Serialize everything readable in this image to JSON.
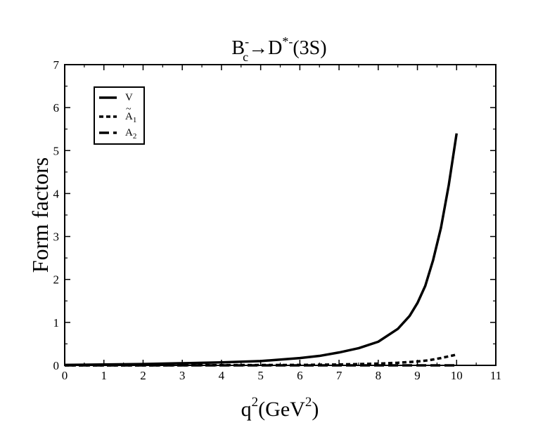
{
  "chart_data": {
    "type": "line",
    "title": {
      "base1": "B",
      "sup1": "-",
      "sub1": "c",
      "arrow": "→",
      "base2": "D",
      "sup2": "*-",
      "tail": "(3S)"
    },
    "xlabel": {
      "base": "q",
      "sup": "2",
      "mid": "(GeV",
      "sup2": "2",
      "end": ")"
    },
    "ylabel": "Form factors",
    "xlim": [
      0,
      11
    ],
    "ylim": [
      0,
      7
    ],
    "x_ticks": [
      "0",
      "1",
      "2",
      "3",
      "4",
      "5",
      "6",
      "7",
      "8",
      "9",
      "10",
      "11"
    ],
    "y_ticks": [
      "0",
      "1",
      "2",
      "3",
      "4",
      "5",
      "6",
      "7"
    ],
    "grid": false,
    "legend_position": "top-left",
    "series": [
      {
        "name": {
          "base": "V",
          "tilde": "",
          "sub": ""
        },
        "dash": "solid",
        "x": [
          0,
          1,
          2,
          3,
          4,
          5,
          6,
          6.5,
          7,
          7.5,
          8,
          8.5,
          8.8,
          9,
          9.2,
          9.4,
          9.6,
          9.8,
          10
        ],
        "y": [
          0.01,
          0.02,
          0.03,
          0.05,
          0.07,
          0.1,
          0.17,
          0.22,
          0.3,
          0.4,
          0.55,
          0.85,
          1.15,
          1.45,
          1.85,
          2.45,
          3.2,
          4.2,
          5.4
        ]
      },
      {
        "name": {
          "base": "A",
          "tilde": "~",
          "sub": "1"
        },
        "dash": "dashed",
        "x": [
          0,
          2,
          4,
          6,
          7,
          8,
          8.5,
          9,
          9.3,
          9.6,
          9.8,
          10
        ],
        "y": [
          0.0,
          0.0,
          0.005,
          0.01,
          0.02,
          0.04,
          0.06,
          0.09,
          0.12,
          0.17,
          0.21,
          0.25
        ]
      },
      {
        "name": {
          "base": "A",
          "tilde": "",
          "sub": "2"
        },
        "dash": "long-dashed",
        "x": [
          0,
          2,
          4,
          6,
          8,
          9,
          10
        ],
        "y": [
          0,
          0,
          0,
          0,
          0,
          0,
          0
        ]
      }
    ]
  }
}
